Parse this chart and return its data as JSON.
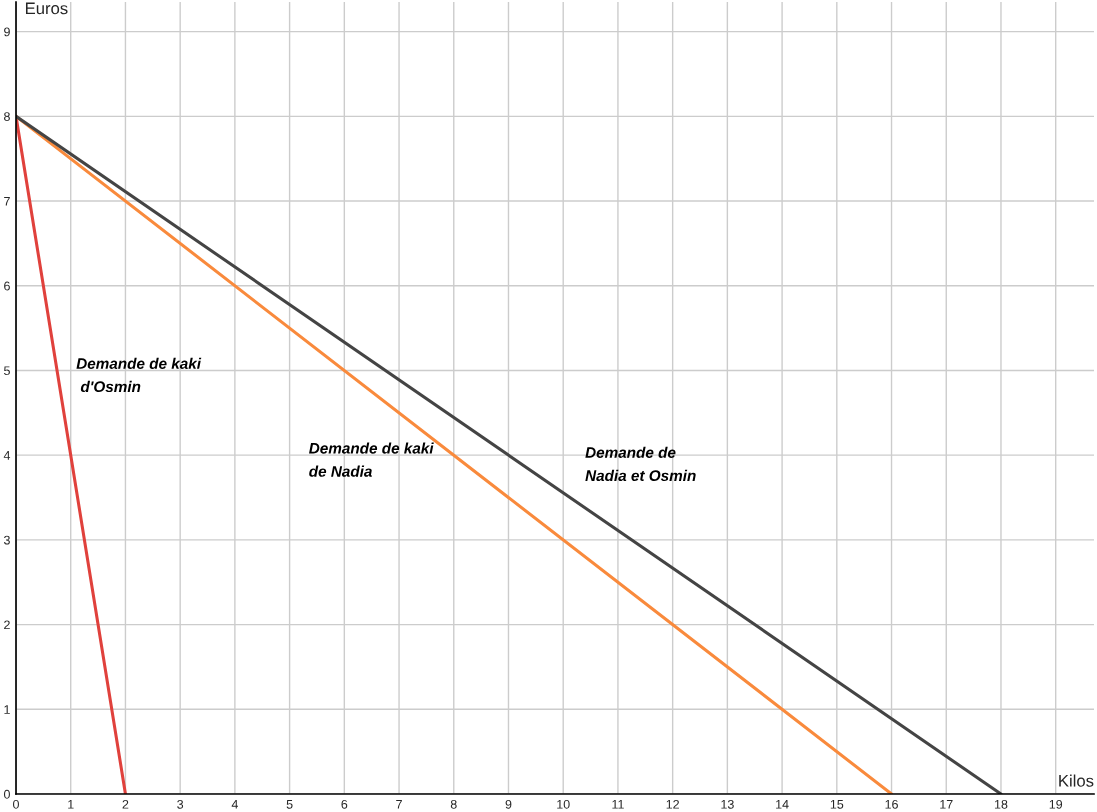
{
  "chart_data": {
    "type": "line",
    "xlabel": "Kilos",
    "ylabel": "Euros",
    "series": [
      {
        "name": "Demande de kaki\n d'Osmin",
        "color": "#e0413c",
        "x": [
          0,
          2
        ],
        "values": [
          8,
          0
        ]
      },
      {
        "name": "Demande de kaki\nde Nadia",
        "color": "#f98a3c",
        "x": [
          0,
          16
        ],
        "values": [
          8,
          0
        ]
      },
      {
        "name": "Demande de\nNadia et Osmin",
        "color": "#444444",
        "x": [
          0,
          18
        ],
        "values": [
          8,
          0
        ]
      }
    ],
    "xlim": [
      0,
      19.7
    ],
    "ylim": [
      0,
      9.35
    ],
    "xticks": [
      0,
      1,
      2,
      3,
      4,
      5,
      6,
      7,
      8,
      9,
      10,
      11,
      12,
      13,
      14,
      15,
      16,
      17,
      18,
      19
    ],
    "yticks": [
      0,
      1,
      2,
      3,
      4,
      5,
      6,
      7,
      8,
      9
    ],
    "grid": true,
    "marker": "none",
    "line_style": "solid"
  }
}
